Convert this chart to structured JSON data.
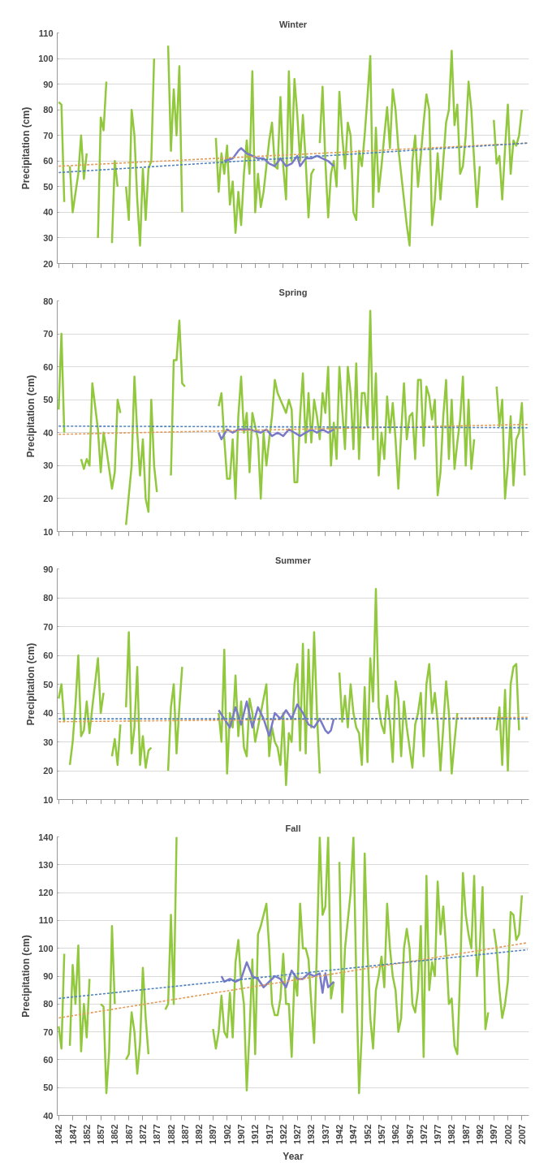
{
  "chart_data": [
    {
      "type": "line",
      "title": "Winter",
      "ylabel": "Precipitation (cm)",
      "xlim": [
        1841.5,
        2009.5
      ],
      "ylim": [
        20,
        110
      ],
      "yticks": [
        20,
        30,
        40,
        50,
        60,
        70,
        80,
        90,
        100,
        110
      ],
      "xticks": [
        1842,
        1847,
        1852,
        1857,
        1862,
        1867,
        1872,
        1877,
        1882,
        1887,
        1892,
        1897,
        1902,
        1907,
        1912,
        1917,
        1922,
        1927,
        1932,
        1937,
        1942,
        1947,
        1952,
        1957,
        1962,
        1967,
        1972,
        1977,
        1982,
        1987,
        1992,
        1997,
        2002,
        2007
      ],
      "tick_labels": "y",
      "grid": "y",
      "series": [
        {
          "type": "line",
          "color": "#92c83e",
          "x": [
            1842,
            1843,
            1844,
            1845,
            1846,
            1847,
            1849,
            1850,
            1851,
            1852,
            1853,
            1856,
            1857,
            1858,
            1859,
            1860,
            1861,
            1862,
            1863,
            1864,
            1866,
            1867,
            1868,
            1869,
            1870,
            1871,
            1872,
            1873,
            1874,
            1875,
            1876,
            1877,
            1881,
            1882,
            1883,
            1884,
            1885,
            1886,
            1890,
            1898,
            1899,
            1900,
            1901,
            1902,
            1903,
            1904,
            1905,
            1906,
            1907,
            1908,
            1909,
            1910,
            1911,
            1912,
            1913,
            1914,
            1915,
            1916,
            1917,
            1918,
            1919,
            1920,
            1921,
            1922,
            1923,
            1924,
            1925,
            1926,
            1927,
            1928,
            1929,
            1930,
            1931,
            1932,
            1933,
            1934,
            1935,
            1936,
            1937,
            1938,
            1939,
            1940,
            1941,
            1942,
            1943,
            1944,
            1945,
            1946,
            1947,
            1948,
            1949,
            1950,
            1951,
            1952,
            1953,
            1954,
            1955,
            1956,
            1957,
            1958,
            1959,
            1960,
            1961,
            1962,
            1963,
            1964,
            1965,
            1966,
            1967,
            1968,
            1969,
            1970,
            1971,
            1972,
            1973,
            1974,
            1975,
            1976,
            1977,
            1978,
            1979,
            1980,
            1981,
            1982,
            1983,
            1984,
            1985,
            1986,
            1987,
            1988,
            1989,
            1990,
            1991,
            1992,
            1993,
            1997,
            1998,
            1999,
            2000,
            2001,
            2002,
            2003,
            2004,
            2005,
            2006,
            2007
          ],
          "values": [
            83,
            82,
            44,
            null,
            58,
            40,
            55,
            70,
            53,
            63,
            null,
            30,
            77,
            72,
            91,
            null,
            28,
            60,
            50,
            null,
            50,
            37,
            80,
            70,
            45,
            27,
            57,
            37,
            57,
            60,
            100,
            null,
            105,
            64,
            88,
            70,
            97,
            40,
            null,
            69,
            48,
            63,
            55,
            66,
            43,
            52,
            32,
            48,
            35,
            55,
            68,
            55,
            95,
            40,
            55,
            42,
            48,
            58,
            68,
            75,
            58,
            57,
            85,
            58,
            45,
            95,
            60,
            92,
            78,
            60,
            78,
            60,
            38,
            55,
            57,
            null,
            67,
            89,
            60,
            38,
            55,
            60,
            50,
            87,
            70,
            57,
            75,
            70,
            40,
            37,
            64,
            58,
            70,
            85,
            101,
            42,
            73,
            48,
            58,
            70,
            81,
            65,
            88,
            80,
            65,
            55,
            45,
            35,
            27,
            60,
            70,
            50,
            62,
            75,
            86,
            80,
            35,
            45,
            63,
            45,
            60,
            75,
            80,
            103,
            74,
            82,
            55,
            58,
            70,
            91,
            80,
            60,
            42,
            58,
            null,
            76,
            59,
            62,
            45,
            65,
            82,
            55,
            68,
            66,
            70,
            80
          ]
        },
        {
          "type": "line",
          "color": "#7a7ac8",
          "x": [
            1901,
            1904,
            1906,
            1907,
            1909,
            1911,
            1913,
            1915,
            1917,
            1919,
            1921,
            1923,
            1925,
            1927,
            1928,
            1930,
            1932,
            1934,
            1936,
            1938,
            1940
          ],
          "values": [
            60,
            61,
            64,
            65,
            63,
            62,
            61,
            61,
            59,
            58,
            61,
            58,
            59,
            62,
            58,
            61,
            61,
            62,
            61,
            60,
            58
          ]
        },
        {
          "type": "line",
          "color": "#e39b5a",
          "line_style": "dashed",
          "x": [
            1842,
            2009
          ],
          "values": [
            58,
            67
          ]
        },
        {
          "type": "line",
          "color": "#4f81bd",
          "line_style": "dashed",
          "x": [
            1842,
            2009
          ],
          "values": [
            55.5,
            67
          ]
        }
      ]
    },
    {
      "type": "line",
      "title": "Spring",
      "ylabel": "Precipitation (cm)",
      "xlim": [
        1841.5,
        2009.5
      ],
      "ylim": [
        10,
        80
      ],
      "yticks": [
        10,
        20,
        30,
        40,
        50,
        60,
        70,
        80
      ],
      "xticks": [
        1842,
        1847,
        1852,
        1857,
        1862,
        1867,
        1872,
        1877,
        1882,
        1887,
        1892,
        1897,
        1902,
        1907,
        1912,
        1917,
        1922,
        1927,
        1932,
        1937,
        1942,
        1947,
        1952,
        1957,
        1962,
        1967,
        1972,
        1977,
        1982,
        1987,
        1992,
        1997,
        2002,
        2007
      ],
      "tick_labels": "y",
      "grid": "y",
      "series": [
        {
          "type": "line",
          "color": "#92c83e",
          "x": [
            1842,
            1843,
            1844,
            1845,
            1850,
            1851,
            1852,
            1853,
            1854,
            1856,
            1857,
            1858,
            1859,
            1861,
            1862,
            1863,
            1864,
            1865,
            1866,
            1868,
            1869,
            1870,
            1871,
            1872,
            1873,
            1874,
            1875,
            1876,
            1877,
            1878,
            1882,
            1883,
            1884,
            1885,
            1886,
            1887,
            1888,
            1899,
            1900,
            1901,
            1902,
            1903,
            1904,
            1905,
            1906,
            1907,
            1908,
            1909,
            1910,
            1911,
            1912,
            1913,
            1914,
            1915,
            1916,
            1917,
            1918,
            1919,
            1920,
            1921,
            1922,
            1923,
            1924,
            1925,
            1926,
            1927,
            1928,
            1929,
            1930,
            1931,
            1932,
            1933,
            1934,
            1935,
            1936,
            1937,
            1938,
            1939,
            1940,
            1941,
            1942,
            1943,
            1944,
            1945,
            1946,
            1947,
            1948,
            1949,
            1950,
            1951,
            1952,
            1953,
            1954,
            1955,
            1956,
            1957,
            1958,
            1959,
            1960,
            1961,
            1962,
            1963,
            1964,
            1965,
            1966,
            1967,
            1968,
            1969,
            1970,
            1971,
            1972,
            1973,
            1974,
            1975,
            1976,
            1977,
            1978,
            1979,
            1980,
            1981,
            1982,
            1983,
            1984,
            1985,
            1986,
            1987,
            1988,
            1989,
            1990,
            1994,
            1998,
            1999,
            2000,
            2001,
            2002,
            2003,
            2004,
            2005,
            2006,
            2007,
            2008
          ],
          "values": [
            47,
            70,
            40,
            null,
            32,
            29,
            32,
            30,
            55,
            41,
            28,
            40,
            35,
            23,
            28,
            50,
            46,
            null,
            12,
            30,
            57,
            40,
            27,
            38,
            20,
            16,
            50,
            30,
            22,
            null,
            27,
            62,
            62,
            74,
            55,
            54,
            null,
            48,
            52,
            38,
            26,
            26,
            38,
            20,
            45,
            57,
            40,
            46,
            28,
            46,
            42,
            38,
            20,
            40,
            30,
            38,
            45,
            56,
            52,
            50,
            48,
            46,
            50,
            47,
            25,
            25,
            45,
            58,
            37,
            52,
            37,
            50,
            45,
            38,
            52,
            46,
            60,
            30,
            43,
            32,
            60,
            47,
            35,
            60,
            52,
            35,
            61,
            32,
            52,
            52,
            42,
            77,
            38,
            58,
            27,
            40,
            32,
            51,
            40,
            49,
            38,
            23,
            40,
            55,
            38,
            45,
            46,
            32,
            56,
            56,
            36,
            54,
            51,
            44,
            50,
            21,
            28,
            45,
            56,
            32,
            50,
            29,
            37,
            44,
            57,
            30,
            50,
            29,
            38,
            null,
            54,
            42,
            50,
            20,
            30,
            45,
            24,
            38,
            40,
            49,
            27
          ]
        },
        {
          "type": "line",
          "color": "#7a7ac8",
          "x": [
            1899,
            1900,
            1902,
            1904,
            1906,
            1910,
            1914,
            1916,
            1918,
            1920,
            1922,
            1924,
            1926,
            1928,
            1930,
            1932,
            1934,
            1936,
            1938,
            1940
          ],
          "values": [
            40,
            38,
            41,
            40,
            41,
            41,
            40,
            41,
            39,
            40,
            39,
            41,
            40,
            39,
            40,
            41,
            40,
            41,
            40,
            41
          ]
        },
        {
          "type": "line",
          "color": "#e39b5a",
          "line_style": "dashed",
          "x": [
            1842,
            2009
          ],
          "values": [
            39.5,
            42.5
          ]
        },
        {
          "type": "line",
          "color": "#4f81bd",
          "line_style": "dashed",
          "x": [
            1842,
            2009
          ],
          "values": [
            42,
            41.5
          ]
        }
      ]
    },
    {
      "type": "line",
      "title": "Summer",
      "ylabel": "Precipitation (cm)",
      "xlim": [
        1841.5,
        2009.5
      ],
      "ylim": [
        10,
        90
      ],
      "yticks": [
        10,
        20,
        30,
        40,
        50,
        60,
        70,
        80,
        90
      ],
      "xticks": [
        1842,
        1847,
        1852,
        1857,
        1862,
        1867,
        1872,
        1877,
        1882,
        1887,
        1892,
        1897,
        1902,
        1907,
        1912,
        1917,
        1922,
        1927,
        1932,
        1937,
        1942,
        1947,
        1952,
        1957,
        1962,
        1967,
        1972,
        1977,
        1982,
        1987,
        1992,
        1997,
        2002,
        2007
      ],
      "tick_labels": "y",
      "grid": "y",
      "series": [
        {
          "type": "line",
          "color": "#92c83e",
          "x": [
            1842,
            1843,
            1844,
            1845,
            1846,
            1847,
            1848,
            1849,
            1850,
            1851,
            1852,
            1853,
            1854,
            1856,
            1857,
            1858,
            1859,
            1860,
            1861,
            1862,
            1863,
            1864,
            1865,
            1866,
            1867,
            1868,
            1869,
            1870,
            1871,
            1872,
            1873,
            1874,
            1875,
            1876,
            1881,
            1882,
            1883,
            1884,
            1885,
            1886,
            1887,
            1899,
            1900,
            1901,
            1902,
            1903,
            1904,
            1905,
            1906,
            1907,
            1908,
            1909,
            1910,
            1911,
            1912,
            1913,
            1914,
            1915,
            1916,
            1917,
            1918,
            1919,
            1920,
            1921,
            1922,
            1923,
            1924,
            1925,
            1926,
            1927,
            1928,
            1929,
            1930,
            1931,
            1932,
            1933,
            1934,
            1935,
            1936,
            1942,
            1943,
            1944,
            1945,
            1946,
            1947,
            1948,
            1949,
            1950,
            1951,
            1952,
            1953,
            1954,
            1955,
            1956,
            1957,
            1958,
            1959,
            1960,
            1961,
            1962,
            1963,
            1964,
            1965,
            1966,
            1967,
            1968,
            1969,
            1970,
            1971,
            1972,
            1973,
            1974,
            1975,
            1976,
            1977,
            1978,
            1979,
            1980,
            1981,
            1982,
            1983,
            1984,
            1985,
            1998,
            1999,
            2000,
            2001,
            2002,
            2003,
            2004,
            2005,
            2006
          ],
          "values": [
            45,
            50,
            37,
            null,
            22,
            30,
            43,
            60,
            32,
            34,
            44,
            33,
            42,
            59,
            40,
            47,
            null,
            null,
            25,
            31,
            22,
            36,
            null,
            42,
            68,
            26,
            35,
            56,
            22,
            32,
            21,
            27,
            28,
            null,
            20,
            42,
            50,
            26,
            42,
            56,
            null,
            40,
            30,
            62,
            19,
            40,
            35,
            53,
            32,
            44,
            28,
            25,
            45,
            40,
            30,
            35,
            40,
            45,
            50,
            25,
            35,
            30,
            28,
            22,
            40,
            15,
            33,
            30,
            50,
            57,
            27,
            64,
            26,
            62,
            35,
            68,
            40,
            19,
            null,
            54,
            37,
            46,
            35,
            50,
            40,
            35,
            33,
            22,
            49,
            23,
            59,
            44,
            83,
            42,
            36,
            33,
            46,
            37,
            23,
            51,
            45,
            25,
            44,
            35,
            28,
            21,
            36,
            40,
            47,
            25,
            50,
            57,
            40,
            47,
            37,
            20,
            35,
            51,
            40,
            19,
            30,
            40,
            null,
            34,
            42,
            22,
            48,
            20,
            50,
            56,
            57,
            34
          ]
        },
        {
          "type": "line",
          "color": "#7a7ac8",
          "x": [
            1899,
            1901,
            1903,
            1905,
            1907,
            1909,
            1911,
            1913,
            1915,
            1917,
            1919,
            1921,
            1923,
            1925,
            1927,
            1929,
            1931,
            1933,
            1935,
            1937,
            1938,
            1939,
            1940
          ],
          "values": [
            41,
            38,
            35,
            42,
            36,
            44,
            35,
            42,
            38,
            32,
            40,
            38,
            41,
            38,
            43,
            40,
            36,
            35,
            38,
            34,
            33,
            34,
            38
          ]
        },
        {
          "type": "line",
          "color": "#e39b5a",
          "line_style": "dashed",
          "x": [
            1842,
            2009
          ],
          "values": [
            37,
            38.5
          ]
        },
        {
          "type": "line",
          "color": "#4f81bd",
          "line_style": "dashed",
          "x": [
            1842,
            2009
          ],
          "values": [
            38,
            38
          ]
        }
      ]
    },
    {
      "type": "line",
      "title": "Fall",
      "ylabel": "Precipitation (cm)",
      "xlabel": "Year",
      "xlim": [
        1841.5,
        2009.5
      ],
      "ylim": [
        40,
        140
      ],
      "yticks": [
        40,
        50,
        60,
        70,
        80,
        90,
        100,
        110,
        120,
        130,
        140
      ],
      "xticks": [
        1842,
        1847,
        1852,
        1857,
        1862,
        1867,
        1872,
        1877,
        1882,
        1887,
        1892,
        1897,
        1902,
        1907,
        1912,
        1917,
        1922,
        1927,
        1932,
        1937,
        1942,
        1947,
        1952,
        1957,
        1962,
        1967,
        1972,
        1977,
        1982,
        1987,
        1992,
        1997,
        2002,
        2007
      ],
      "grid": "y",
      "series": [
        {
          "type": "line",
          "color": "#92c83e",
          "x": [
            1842,
            1843,
            1844,
            1845,
            1846,
            1847,
            1848,
            1849,
            1850,
            1851,
            1852,
            1853,
            1854,
            1857,
            1858,
            1859,
            1860,
            1861,
            1862,
            1863,
            1866,
            1867,
            1868,
            1869,
            1870,
            1871,
            1872,
            1873,
            1874,
            1875,
            1880,
            1881,
            1882,
            1883,
            1884,
            1885,
            1897,
            1898,
            1899,
            1900,
            1901,
            1902,
            1903,
            1904,
            1905,
            1906,
            1907,
            1908,
            1909,
            1910,
            1911,
            1912,
            1913,
            1914,
            1916,
            1917,
            1918,
            1919,
            1920,
            1921,
            1922,
            1923,
            1924,
            1925,
            1926,
            1927,
            1928,
            1929,
            1930,
            1931,
            1932,
            1933,
            1934,
            1935,
            1936,
            1937,
            1938,
            1939,
            1940,
            1941,
            1942,
            1943,
            1944,
            1945,
            1946,
            1947,
            1948,
            1949,
            1950,
            1951,
            1952,
            1953,
            1954,
            1955,
            1956,
            1957,
            1958,
            1959,
            1960,
            1961,
            1962,
            1963,
            1964,
            1965,
            1966,
            1967,
            1968,
            1969,
            1970,
            1971,
            1972,
            1973,
            1974,
            1975,
            1976,
            1977,
            1978,
            1979,
            1980,
            1981,
            1982,
            1983,
            1984,
            1985,
            1986,
            1987,
            1988,
            1989,
            1990,
            1991,
            1992,
            1993,
            1994,
            1995,
            1996,
            1997,
            1998,
            1999,
            2000,
            2001,
            2002,
            2003,
            2004,
            2005,
            2006,
            2007
          ],
          "values": [
            72,
            64,
            98,
            null,
            65,
            94,
            80,
            101,
            63,
            80,
            68,
            89,
            null,
            80,
            79,
            48,
            63,
            108,
            80,
            null,
            60,
            62,
            77,
            70,
            55,
            66,
            93,
            75,
            62,
            null,
            78,
            80,
            112,
            80,
            140,
            null,
            71,
            64,
            70,
            83,
            70,
            68,
            84,
            68,
            95,
            103,
            88,
            80,
            49,
            70,
            96,
            62,
            105,
            108,
            116,
            100,
            80,
            76,
            76,
            82,
            98,
            80,
            80,
            61,
            90,
            83,
            116,
            100,
            100,
            96,
            80,
            66,
            100,
            140,
            112,
            115,
            140,
            82,
            88,
            null,
            131,
            77,
            100,
            110,
            120,
            140,
            90,
            48,
            70,
            134,
            100,
            75,
            64,
            85,
            90,
            97,
            86,
            116,
            100,
            90,
            85,
            70,
            75,
            100,
            107,
            100,
            80,
            77,
            85,
            108,
            61,
            126,
            85,
            95,
            90,
            124,
            105,
            115,
            100,
            80,
            82,
            65,
            62,
            90,
            127,
            112,
            105,
            100,
            126,
            90,
            100,
            122,
            71,
            77,
            null,
            107,
            100,
            85,
            75,
            80,
            88,
            113,
            112,
            103,
            105,
            119
          ]
        },
        {
          "type": "line",
          "color": "#7a7ac8",
          "x": [
            1900,
            1901,
            1903,
            1905,
            1907,
            1909,
            1911,
            1913,
            1915,
            1917,
            1919,
            1921,
            1923,
            1925,
            1927,
            1929,
            1931,
            1933,
            1935,
            1936,
            1937,
            1938,
            1940
          ],
          "values": [
            90,
            88,
            89,
            88,
            89,
            95,
            90,
            89,
            86,
            88,
            90,
            89,
            86,
            92,
            89,
            89,
            91,
            90,
            91,
            84,
            91,
            86,
            88
          ]
        },
        {
          "type": "line",
          "color": "#e39b5a",
          "line_style": "dashed",
          "x": [
            1842,
            2009
          ],
          "values": [
            75,
            102
          ]
        },
        {
          "type": "line",
          "color": "#4f81bd",
          "line_style": "dashed",
          "x": [
            1842,
            2009
          ],
          "values": [
            82,
            99.5
          ]
        }
      ]
    }
  ]
}
